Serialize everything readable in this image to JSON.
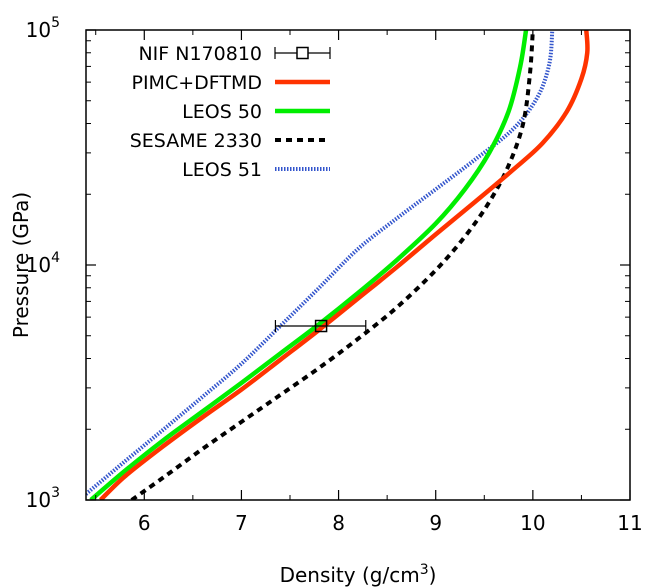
{
  "chart_data": {
    "type": "line",
    "xlabel": "Density (g/cm",
    "xlabel_sup": "3",
    "xlabel_end": ")",
    "ylabel": "Pressure (GPa)",
    "xlim": [
      5.4,
      11
    ],
    "ylim": [
      1000,
      100000
    ],
    "y_scale": "log",
    "x_ticks": [
      6,
      7,
      8,
      9,
      10,
      11
    ],
    "x_tick_labels": [
      "6",
      "7",
      "8",
      "9",
      "10",
      "11"
    ],
    "y_tick_labels": [
      {
        "value": 1000,
        "base": "10",
        "exp": "3"
      },
      {
        "value": 10000,
        "base": "10",
        "exp": "4"
      },
      {
        "value": 100000,
        "base": "10",
        "exp": "5"
      }
    ],
    "grid": false,
    "legend_position": "top-left",
    "series": [
      {
        "name": "NIF N170810",
        "kind": "errorbar",
        "color": "#000000",
        "points": [
          {
            "x": 7.82,
            "y": 5500,
            "xerr_low": 7.35,
            "xerr_high": 8.28
          }
        ]
      },
      {
        "name": "PIMC+DFTMD",
        "kind": "line",
        "color": "#ff3300",
        "dash": "solid",
        "x": [
          5.55,
          5.8,
          6.2,
          6.6,
          7.0,
          7.4,
          7.8,
          8.2,
          8.6,
          9.0,
          9.4,
          9.8,
          10.1,
          10.35,
          10.5,
          10.56,
          10.55
        ],
        "y": [
          1000,
          1260,
          1700,
          2250,
          2950,
          3950,
          5300,
          7200,
          9800,
          13500,
          18500,
          25500,
          33000,
          45000,
          62000,
          80000,
          100000
        ]
      },
      {
        "name": "LEOS 50",
        "kind": "line",
        "color": "#00ee00",
        "dash": "solid",
        "x": [
          5.45,
          5.8,
          6.2,
          6.6,
          7.0,
          7.4,
          7.8,
          8.2,
          8.6,
          9.0,
          9.3,
          9.55,
          9.75,
          9.87,
          9.93
        ],
        "y": [
          1000,
          1330,
          1800,
          2380,
          3150,
          4200,
          5600,
          7600,
          10500,
          15000,
          21000,
          30000,
          45000,
          70000,
          100000
        ]
      },
      {
        "name": "SESAME 2330",
        "kind": "line",
        "color": "#000000",
        "dash": "dashed",
        "x": [
          5.87,
          6.2,
          6.6,
          7.0,
          7.4,
          7.8,
          8.2,
          8.6,
          9.0,
          9.3,
          9.55,
          9.75,
          9.9,
          9.97,
          10.0
        ],
        "y": [
          1000,
          1250,
          1650,
          2150,
          2800,
          3650,
          4850,
          6600,
          9500,
          13200,
          18500,
          26500,
          40000,
          65000,
          100000
        ]
      },
      {
        "name": "LEOS 51",
        "kind": "line",
        "color": "#3355cc",
        "dash": "dotted",
        "x": [
          5.4,
          5.8,
          6.2,
          6.6,
          7.0,
          7.4,
          7.8,
          8.2,
          8.6,
          9.0,
          9.4,
          9.8,
          10.05,
          10.17,
          10.2
        ],
        "y": [
          1060,
          1460,
          2000,
          2750,
          3800,
          5500,
          8000,
          11700,
          15800,
          21000,
          28000,
          38000,
          52000,
          72000,
          100000
        ]
      }
    ]
  }
}
